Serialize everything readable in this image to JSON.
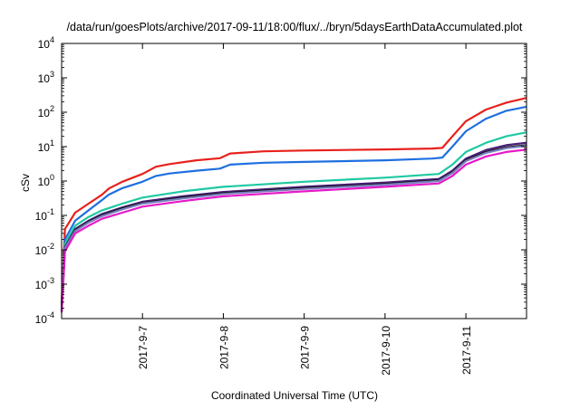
{
  "chart_data": {
    "type": "line",
    "title": "/data/run/goesPlots/archive/2017-09-11/18:00/flux/../bryn/5daysEarthDataAccumulated.plot",
    "xlabel": "Coordinated Universal Time (UTC)",
    "ylabel": "cSv",
    "x_scale": "time",
    "y_scale": "log",
    "xlim": [
      "2017-09-06 00:00",
      "2017-09-11 18:00"
    ],
    "ylim": [
      0.0001,
      10000
    ],
    "x_ticks": [
      "2017-9-7",
      "2017-9-8",
      "2017-9-9",
      "2017-9-10",
      "2017-9-11"
    ],
    "x_tick_dates": [
      "2017-09-07 00:00",
      "2017-09-08 00:00",
      "2017-09-09 00:00",
      "2017-09-10 00:00",
      "2017-09-11 00:00"
    ],
    "y_ticks": [
      {
        "value": 0.0001,
        "base": "10",
        "exp": "-4"
      },
      {
        "value": 0.001,
        "base": "10",
        "exp": "-3"
      },
      {
        "value": 0.01,
        "base": "10",
        "exp": "-2"
      },
      {
        "value": 0.1,
        "base": "10",
        "exp": "-1"
      },
      {
        "value": 1,
        "base": "10",
        "exp": "0"
      },
      {
        "value": 10,
        "base": "10",
        "exp": "1"
      },
      {
        "value": 100,
        "base": "10",
        "exp": "2"
      },
      {
        "value": 1000,
        "base": "10",
        "exp": "3"
      },
      {
        "value": 10000,
        "base": "10",
        "exp": "4"
      }
    ],
    "grid": false,
    "legend": "none",
    "series": [
      {
        "color": "#e8211c",
        "points": [
          [
            "2017-09-06 00:00",
            0.0003
          ],
          [
            "2017-09-06 01:00",
            0.04
          ],
          [
            "2017-09-06 04:00",
            0.12
          ],
          [
            "2017-09-06 08:00",
            0.22
          ],
          [
            "2017-09-06 12:00",
            0.4
          ],
          [
            "2017-09-06 14:00",
            0.6
          ],
          [
            "2017-09-06 18:00",
            0.95
          ],
          [
            "2017-09-07 00:00",
            1.6
          ],
          [
            "2017-09-07 04:00",
            2.6
          ],
          [
            "2017-09-07 08:00",
            3.1
          ],
          [
            "2017-09-07 16:00",
            4.0
          ],
          [
            "2017-09-07 23:00",
            4.6
          ],
          [
            "2017-09-08 02:00",
            6.3
          ],
          [
            "2017-09-08 12:00",
            7.3
          ],
          [
            "2017-09-09 00:00",
            7.7
          ],
          [
            "2017-09-10 00:00",
            8.3
          ],
          [
            "2017-09-10 14:00",
            8.8
          ],
          [
            "2017-09-10 17:00",
            9.2
          ],
          [
            "2017-09-10 20:00",
            20
          ],
          [
            "2017-09-11 00:00",
            55
          ],
          [
            "2017-09-11 06:00",
            120
          ],
          [
            "2017-09-11 12:00",
            190
          ],
          [
            "2017-09-11 18:00",
            260
          ]
        ]
      },
      {
        "color": "#1f6fe0",
        "points": [
          [
            "2017-09-06 00:00",
            0.00025
          ],
          [
            "2017-09-06 01:00",
            0.02
          ],
          [
            "2017-09-06 04:00",
            0.07
          ],
          [
            "2017-09-06 08:00",
            0.14
          ],
          [
            "2017-09-06 12:00",
            0.28
          ],
          [
            "2017-09-06 14:00",
            0.4
          ],
          [
            "2017-09-06 18:00",
            0.62
          ],
          [
            "2017-09-07 00:00",
            0.95
          ],
          [
            "2017-09-07 04:00",
            1.4
          ],
          [
            "2017-09-07 08:00",
            1.65
          ],
          [
            "2017-09-07 16:00",
            2.0
          ],
          [
            "2017-09-07 23:00",
            2.3
          ],
          [
            "2017-09-08 02:00",
            3.0
          ],
          [
            "2017-09-08 12:00",
            3.4
          ],
          [
            "2017-09-09 00:00",
            3.6
          ],
          [
            "2017-09-10 00:00",
            4.0
          ],
          [
            "2017-09-10 14:00",
            4.5
          ],
          [
            "2017-09-10 17:00",
            4.8
          ],
          [
            "2017-09-10 20:00",
            10
          ],
          [
            "2017-09-11 00:00",
            28
          ],
          [
            "2017-09-11 06:00",
            65
          ],
          [
            "2017-09-11 12:00",
            110
          ],
          [
            "2017-09-11 18:00",
            145
          ]
        ]
      },
      {
        "color": "#1fc9a3",
        "points": [
          [
            "2017-09-06 00:00",
            0.0002
          ],
          [
            "2017-09-06 01:00",
            0.015
          ],
          [
            "2017-09-06 04:00",
            0.05
          ],
          [
            "2017-09-06 08:00",
            0.09
          ],
          [
            "2017-09-06 12:00",
            0.14
          ],
          [
            "2017-09-06 18:00",
            0.22
          ],
          [
            "2017-09-07 00:00",
            0.33
          ],
          [
            "2017-09-07 12:00",
            0.5
          ],
          [
            "2017-09-08 00:00",
            0.68
          ],
          [
            "2017-09-09 00:00",
            0.95
          ],
          [
            "2017-09-10 00:00",
            1.25
          ],
          [
            "2017-09-10 16:00",
            1.6
          ],
          [
            "2017-09-10 20:00",
            3.0
          ],
          [
            "2017-09-11 00:00",
            7
          ],
          [
            "2017-09-11 06:00",
            13
          ],
          [
            "2017-09-11 12:00",
            20
          ],
          [
            "2017-09-11 18:00",
            26
          ]
        ]
      },
      {
        "color": "#4a1f7a",
        "points": [
          [
            "2017-09-06 00:00",
            0.00018
          ],
          [
            "2017-09-06 01:00",
            0.012
          ],
          [
            "2017-09-06 04:00",
            0.04
          ],
          [
            "2017-09-06 08:00",
            0.07
          ],
          [
            "2017-09-06 12:00",
            0.11
          ],
          [
            "2017-09-06 18:00",
            0.17
          ],
          [
            "2017-09-07 00:00",
            0.25
          ],
          [
            "2017-09-07 12:00",
            0.36
          ],
          [
            "2017-09-08 00:00",
            0.48
          ],
          [
            "2017-09-09 00:00",
            0.68
          ],
          [
            "2017-09-10 00:00",
            0.9
          ],
          [
            "2017-09-10 16:00",
            1.15
          ],
          [
            "2017-09-10 20:00",
            2.0
          ],
          [
            "2017-09-11 00:00",
            4.5
          ],
          [
            "2017-09-11 06:00",
            8
          ],
          [
            "2017-09-11 12:00",
            11
          ],
          [
            "2017-09-11 18:00",
            13
          ]
        ]
      },
      {
        "color": "#111111",
        "points": [
          [
            "2017-09-06 00:00",
            0.00017
          ],
          [
            "2017-09-06 01:00",
            0.011
          ],
          [
            "2017-09-06 04:00",
            0.037
          ],
          [
            "2017-09-06 08:00",
            0.065
          ],
          [
            "2017-09-06 12:00",
            0.1
          ],
          [
            "2017-09-06 18:00",
            0.16
          ],
          [
            "2017-09-07 00:00",
            0.23
          ],
          [
            "2017-09-07 12:00",
            0.33
          ],
          [
            "2017-09-08 00:00",
            0.44
          ],
          [
            "2017-09-09 00:00",
            0.62
          ],
          [
            "2017-09-10 00:00",
            0.82
          ],
          [
            "2017-09-10 16:00",
            1.05
          ],
          [
            "2017-09-10 20:00",
            1.8
          ],
          [
            "2017-09-11 00:00",
            4.0
          ],
          [
            "2017-09-11 06:00",
            7
          ],
          [
            "2017-09-11 12:00",
            9.5
          ],
          [
            "2017-09-11 18:00",
            11
          ]
        ]
      },
      {
        "color": "#7a7fbf",
        "points": [
          [
            "2017-09-06 00:00",
            0.00016
          ],
          [
            "2017-09-06 01:00",
            0.011
          ],
          [
            "2017-09-06 04:00",
            0.035
          ],
          [
            "2017-09-06 08:00",
            0.062
          ],
          [
            "2017-09-06 12:00",
            0.095
          ],
          [
            "2017-09-06 18:00",
            0.15
          ],
          [
            "2017-09-07 00:00",
            0.22
          ],
          [
            "2017-09-07 12:00",
            0.31
          ],
          [
            "2017-09-08 00:00",
            0.42
          ],
          [
            "2017-09-09 00:00",
            0.59
          ],
          [
            "2017-09-10 00:00",
            0.78
          ],
          [
            "2017-09-10 16:00",
            1.0
          ],
          [
            "2017-09-10 20:00",
            1.7
          ],
          [
            "2017-09-11 00:00",
            3.8
          ],
          [
            "2017-09-11 06:00",
            6.6
          ],
          [
            "2017-09-11 12:00",
            9
          ],
          [
            "2017-09-11 18:00",
            10.5
          ]
        ]
      },
      {
        "color": "#e619c8",
        "points": [
          [
            "2017-09-06 00:00",
            0.00015
          ],
          [
            "2017-09-06 01:00",
            0.009
          ],
          [
            "2017-09-06 04:00",
            0.03
          ],
          [
            "2017-09-06 08:00",
            0.05
          ],
          [
            "2017-09-06 12:00",
            0.08
          ],
          [
            "2017-09-06 18:00",
            0.12
          ],
          [
            "2017-09-07 00:00",
            0.18
          ],
          [
            "2017-09-07 12:00",
            0.26
          ],
          [
            "2017-09-08 00:00",
            0.36
          ],
          [
            "2017-09-09 00:00",
            0.5
          ],
          [
            "2017-09-10 00:00",
            0.68
          ],
          [
            "2017-09-10 16:00",
            0.85
          ],
          [
            "2017-09-10 20:00",
            1.4
          ],
          [
            "2017-09-11 00:00",
            3.0
          ],
          [
            "2017-09-11 06:00",
            5.2
          ],
          [
            "2017-09-11 12:00",
            7
          ],
          [
            "2017-09-11 18:00",
            8.2
          ]
        ]
      }
    ]
  }
}
